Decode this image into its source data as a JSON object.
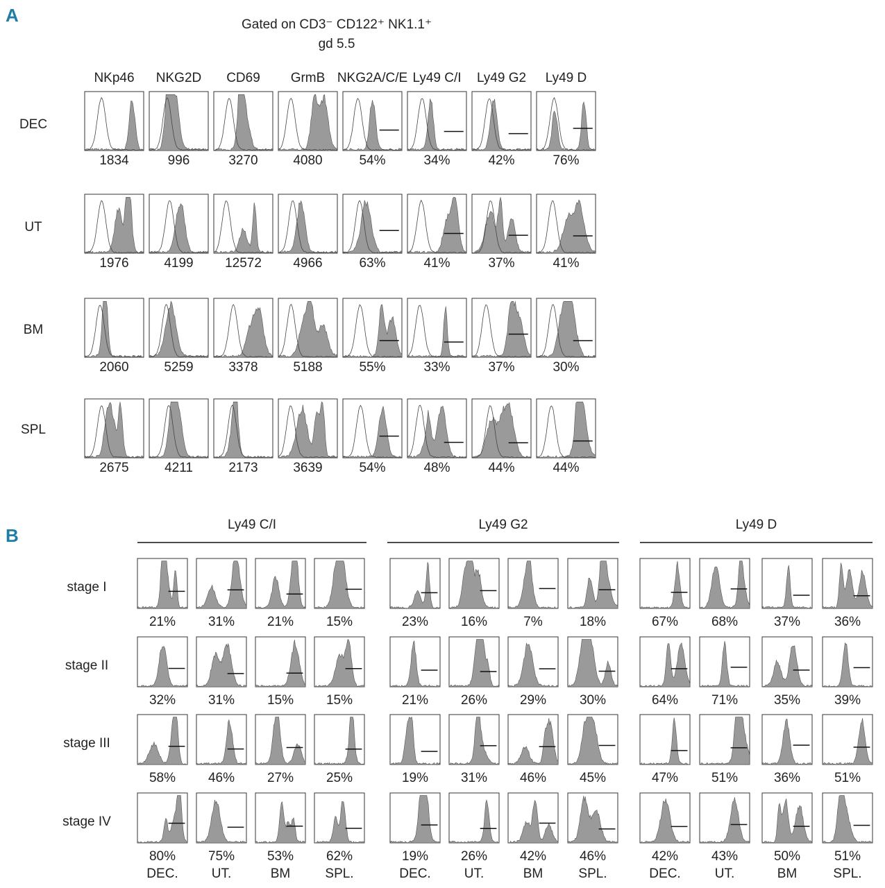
{
  "panel_a": {
    "label": "A",
    "title": [
      "Gated on CD3⁻ CD122⁺ NK1.1⁺",
      "gd 5.5"
    ],
    "columns": [
      "NKp46",
      "NKG2D",
      "CD69",
      "GrmB",
      "NKG2A/C/E",
      "Ly49  C/I",
      "Ly49  G2",
      "Ly49 D"
    ],
    "rows": [
      {
        "label": "DEC",
        "values": [
          "1834",
          "996",
          "3270",
          "4080",
          "54%",
          "34%",
          "42%",
          "76%"
        ]
      },
      {
        "label": "UT",
        "values": [
          "1976",
          "4199",
          "12572",
          "4966",
          "63%",
          "41%",
          "37%",
          "41%"
        ]
      },
      {
        "label": "BM",
        "values": [
          "2060",
          "5259",
          "3378",
          "5188",
          "55%",
          "33%",
          "37%",
          "30%"
        ]
      },
      {
        "label": "SPL",
        "values": [
          "2675",
          "4211",
          "2173",
          "3639",
          "54%",
          "48%",
          "44%",
          "44%"
        ]
      }
    ]
  },
  "panel_b": {
    "label": "B",
    "stages": [
      "stage I",
      "stage II",
      "stage III",
      "stage IV"
    ],
    "groups": [
      {
        "title": "Ly49 C/I",
        "sources": [
          "DEC.",
          "UT.",
          "BM",
          "SPL."
        ],
        "rows": [
          [
            "21%",
            "31%",
            "21%",
            "15%"
          ],
          [
            "32%",
            "31%",
            "15%",
            "15%"
          ],
          [
            "58%",
            "46%",
            "27%",
            "25%"
          ],
          [
            "80%",
            "75%",
            "53%",
            "62%"
          ]
        ]
      },
      {
        "title": "Ly49 G2",
        "sources": [
          "DEC.",
          "UT.",
          "BM",
          "SPL."
        ],
        "rows": [
          [
            "23%",
            "16%",
            "7%",
            "18%"
          ],
          [
            "21%",
            "26%",
            "29%",
            "30%"
          ],
          [
            "19%",
            "31%",
            "46%",
            "45%"
          ],
          [
            "19%",
            "26%",
            "42%",
            "46%"
          ]
        ]
      },
      {
        "title": "Ly49 D",
        "sources": [
          "DEC.",
          "UT.",
          "BM",
          "SPL."
        ],
        "rows": [
          [
            "67%",
            "68%",
            "37%",
            "36%"
          ],
          [
            "64%",
            "71%",
            "35%",
            "39%"
          ],
          [
            "47%",
            "51%",
            "36%",
            "51%"
          ],
          [
            "42%",
            "43%",
            "50%",
            "51%"
          ]
        ]
      }
    ]
  }
}
